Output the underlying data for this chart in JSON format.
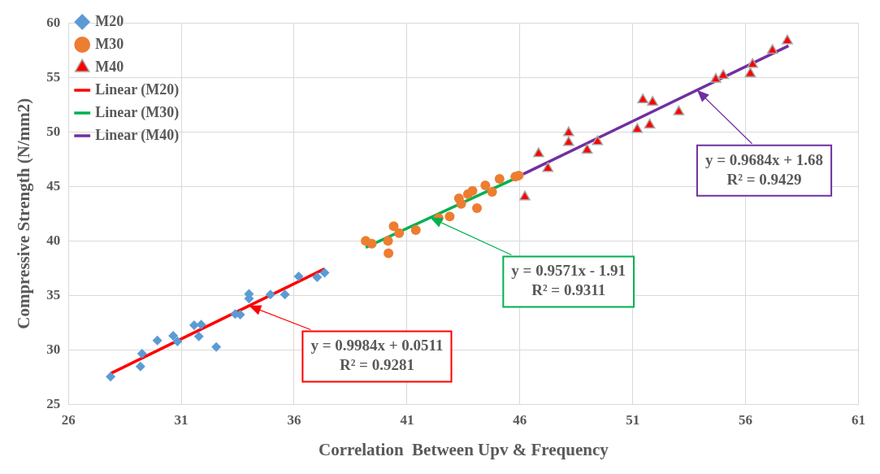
{
  "chart_data": {
    "type": "scatter",
    "xlabel": "Correlation  Between Upv & Frequency",
    "ylabel": "Compressive Strength (N/mm2)",
    "xlim": [
      26,
      61
    ],
    "xticks": [
      26,
      31,
      36,
      41,
      46,
      51,
      56,
      61
    ],
    "ylim": [
      25,
      60
    ],
    "yticks": [
      25,
      30,
      35,
      40,
      45,
      50,
      55,
      60
    ],
    "grid": true,
    "legend": "top left",
    "series": [
      {
        "name": "M20",
        "type": "scatter",
        "marker": "diamond",
        "color": "#5b9bd5",
        "x": [
          27.87,
          29.19,
          29.26,
          29.94,
          30.64,
          30.83,
          31.57,
          31.88,
          31.78,
          32.55,
          33.39,
          33.61,
          34.0,
          34.0,
          34.95,
          35.59,
          36.2,
          37.02,
          37.35
        ],
        "values": [
          27.54,
          28.48,
          29.66,
          30.86,
          31.3,
          30.78,
          32.27,
          32.32,
          31.24,
          30.27,
          33.29,
          33.24,
          35.13,
          34.7,
          35.08,
          35.08,
          36.75,
          36.67,
          37.08
        ]
      },
      {
        "name": "M30",
        "type": "scatter",
        "marker": "circle",
        "color": "#ed7d31",
        "x": [
          39.17,
          39.44,
          40.18,
          40.16,
          40.41,
          40.65,
          41.39,
          42.4,
          42.89,
          43.3,
          43.4,
          43.7,
          43.9,
          44.1,
          44.47,
          44.77,
          45.1,
          45.8,
          45.95
        ],
        "values": [
          40.0,
          39.74,
          38.87,
          40.0,
          41.35,
          40.71,
          41.0,
          42.1,
          42.24,
          43.9,
          43.4,
          44.3,
          44.6,
          43.0,
          45.1,
          44.5,
          45.7,
          45.9,
          46.0
        ]
      },
      {
        "name": "M40",
        "type": "scatter",
        "marker": "triangle",
        "color": "#ff0000",
        "x": [
          46.22,
          46.83,
          47.24,
          48.16,
          48.16,
          48.98,
          49.44,
          51.2,
          51.45,
          51.88,
          51.75,
          53.04,
          54.68,
          55.01,
          56.21,
          56.31,
          57.19,
          57.85
        ],
        "values": [
          44.04,
          48.0,
          46.65,
          49.92,
          49.03,
          48.33,
          49.1,
          50.23,
          52.94,
          52.73,
          50.64,
          51.84,
          54.83,
          55.17,
          55.34,
          56.19,
          57.47,
          58.36
        ]
      },
      {
        "name": "Linear (M20)",
        "type": "line",
        "marker": "none",
        "line_style": "solid",
        "color": "#ff0000",
        "x": [
          27.87,
          37.35
        ],
        "values": [
          27.84,
          37.44
        ]
      },
      {
        "name": "Linear (M30)",
        "type": "line",
        "marker": "none",
        "line_style": "solid",
        "color": "#00b050",
        "x": [
          39.17,
          45.7
        ],
        "values": [
          39.4,
          45.65
        ]
      },
      {
        "name": "Linear (M40)",
        "type": "line",
        "marker": "none",
        "line_style": "solid",
        "color": "#7030a0",
        "x": [
          46.15,
          57.9
        ],
        "values": [
          46.13,
          57.9
        ]
      }
    ],
    "annotations": [
      {
        "text": "y = 0.9984x + 0.0511\nR² = 0.9281",
        "x": 34.0,
        "y": 34.05
      },
      {
        "text": "y = 0.9571x - 1.91\nR² = 0.9311",
        "x": 42.03,
        "y": 42.14
      },
      {
        "text": "y = 0.9684x + 1.68\nR² = 0.9429",
        "x": 53.85,
        "y": 53.84
      }
    ]
  }
}
